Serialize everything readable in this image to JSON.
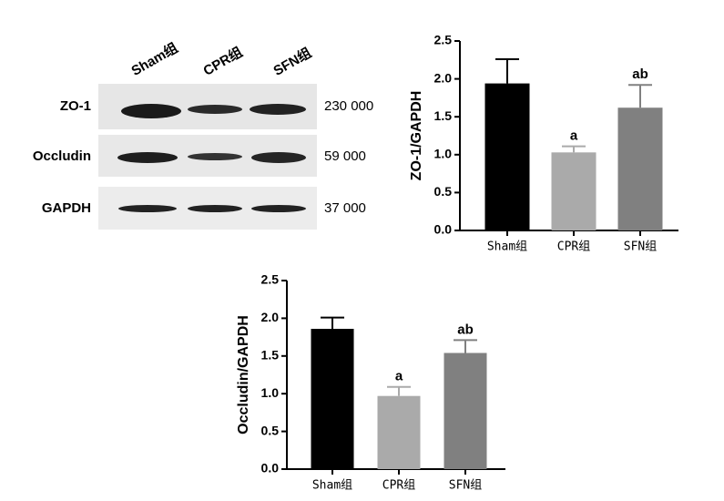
{
  "blot": {
    "lanes": [
      "Sham组",
      "CPR组",
      "SFN组"
    ],
    "rows": [
      {
        "label": "ZO-1",
        "mw": "230 000"
      },
      {
        "label": "Occludin",
        "mw": "59 000"
      },
      {
        "label": "GAPDH",
        "mw": "37 000"
      }
    ]
  },
  "chart_data": [
    {
      "type": "bar",
      "ylabel": "ZO-1/GAPDH",
      "categories": [
        "Sham组",
        "CPR组",
        "SFN组"
      ],
      "values": [
        1.94,
        1.03,
        1.62
      ],
      "errors": [
        0.32,
        0.08,
        0.3
      ],
      "annotations": [
        null,
        "a",
        "ab"
      ],
      "colors": [
        "#000000",
        "#aaaaaa",
        "#808080"
      ],
      "ylim": [
        0,
        2.5
      ],
      "yticks": [
        {
          "value": 0,
          "label": "0.0"
        },
        0.5,
        {
          "value": 1,
          "label": "1.0"
        },
        1.5,
        {
          "value": 2,
          "label": "2.0"
        },
        2.5
      ]
    },
    {
      "type": "bar",
      "ylabel": "Occludin/GAPDH",
      "categories": [
        "Sham组",
        "CPR组",
        "SFN组"
      ],
      "values": [
        1.86,
        0.97,
        1.54
      ],
      "errors": [
        0.15,
        0.12,
        0.17
      ],
      "annotations": [
        null,
        "a",
        "ab"
      ],
      "colors": [
        "#000000",
        "#aaaaaa",
        "#808080"
      ],
      "ylim": [
        0,
        2.5
      ],
      "yticks": [
        {
          "value": 0,
          "label": "0.0"
        },
        0.5,
        {
          "value": 1,
          "label": "1.0"
        },
        1.5,
        {
          "value": 2,
          "label": "2.0"
        },
        2.5
      ]
    }
  ]
}
